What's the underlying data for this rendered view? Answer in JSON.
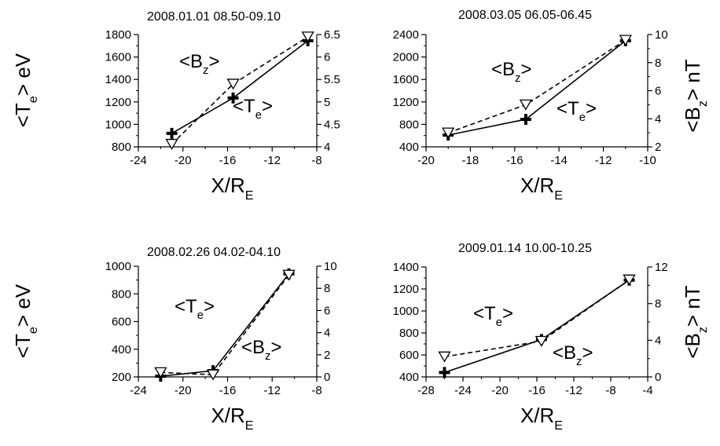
{
  "chart_data": [
    {
      "type": "line",
      "title": "2008.01.01 08.50-09.10",
      "xlabel": "X/R_E",
      "ylabel_left": "<T_e> eV",
      "ylabel_right": "",
      "xlim": [
        -24,
        -8
      ],
      "xticks": [
        -24,
        -20,
        -16,
        -12,
        -8
      ],
      "ylim_left": [
        800,
        1800
      ],
      "yticks_left": [
        800,
        1000,
        1200,
        1400,
        1600,
        1800
      ],
      "ylim_right": [
        4,
        6.5
      ],
      "yticks_right": [
        4,
        4.5,
        5,
        5.5,
        6,
        6.5
      ],
      "annotations": [
        "<B_z>",
        "<T_e>"
      ],
      "series": [
        {
          "axis": "left",
          "style": "solid",
          "marker": "plus",
          "x": [
            -21,
            -15.5,
            -8.8
          ],
          "y": [
            920,
            1235,
            1745
          ]
        },
        {
          "axis": "right",
          "style": "dashed",
          "marker": "triangle-down",
          "x": [
            -21,
            -15.5,
            -8.8
          ],
          "y": [
            4.06,
            5.4,
            6.45
          ]
        }
      ]
    },
    {
      "type": "line",
      "title": "2008.03.05 06.05-06.45",
      "xlabel": "X/R_E",
      "ylabel_left": "",
      "ylabel_right": "<B_z> nT",
      "xlim": [
        -20,
        -10
      ],
      "xticks": [
        -20,
        -18,
        -16,
        -14,
        -12,
        -10
      ],
      "ylim_left": [
        400,
        2400
      ],
      "yticks_left": [
        400,
        800,
        1200,
        1600,
        2000,
        2400
      ],
      "ylim_right": [
        2,
        10
      ],
      "yticks_right": [
        2,
        4,
        6,
        8,
        10
      ],
      "annotations": [
        "<B_z>",
        "<T_e>"
      ],
      "series": [
        {
          "axis": "left",
          "style": "solid",
          "marker": "plus",
          "x": [
            -19,
            -15.5,
            -11
          ],
          "y": [
            610,
            890,
            2290
          ]
        },
        {
          "axis": "right",
          "style": "dashed",
          "marker": "triangle-down",
          "x": [
            -19,
            -15.5,
            -11
          ],
          "y": [
            3.0,
            5.0,
            9.6
          ]
        }
      ]
    },
    {
      "type": "line",
      "title": "2008.02.26 04.02-04.10",
      "xlabel": "X/R_E",
      "ylabel_left": "<T_e> eV",
      "ylabel_right": "",
      "xlim": [
        -24,
        -8
      ],
      "xticks": [
        -24,
        -20,
        -16,
        -12,
        -8
      ],
      "ylim_left": [
        200,
        1000
      ],
      "yticks_left": [
        200,
        400,
        600,
        800,
        1000
      ],
      "ylim_right": [
        0,
        10
      ],
      "yticks_right": [
        0,
        2,
        4,
        6,
        8,
        10
      ],
      "annotations": [
        "<T_e>",
        "<B_z>"
      ],
      "series": [
        {
          "axis": "left",
          "style": "solid",
          "marker": "plus",
          "x": [
            -22,
            -17.3,
            -10.5
          ],
          "y": [
            205,
            245,
            945
          ]
        },
        {
          "axis": "right",
          "style": "dashed",
          "marker": "triangle-down",
          "x": [
            -22,
            -17.3,
            -10.5
          ],
          "y": [
            0.4,
            0.2,
            9.2
          ]
        }
      ]
    },
    {
      "type": "line",
      "title": "2009.01.14 10.00-10.25",
      "xlabel": "X/R_E",
      "ylabel_left": "",
      "ylabel_right": "<B_z> nT",
      "xlim": [
        -28,
        -4
      ],
      "xticks": [
        -28,
        -24,
        -20,
        -16,
        -12,
        -8,
        -4
      ],
      "ylim_left": [
        400,
        1400
      ],
      "yticks_left": [
        400,
        600,
        800,
        1000,
        1200,
        1400
      ],
      "ylim_right": [
        0,
        12
      ],
      "yticks_right": [
        0,
        4,
        8,
        12
      ],
      "annotations": [
        "<T_e>",
        "<B_z>"
      ],
      "series": [
        {
          "axis": "left",
          "style": "solid",
          "marker": "plus",
          "x": [
            -26,
            -15.5,
            -6
          ],
          "y": [
            440,
            740,
            1280
          ]
        },
        {
          "axis": "right",
          "style": "dashed",
          "marker": "triangle-down",
          "x": [
            -26,
            -15.5,
            -6
          ],
          "y": [
            2.2,
            3.9,
            10.6
          ]
        }
      ]
    }
  ]
}
